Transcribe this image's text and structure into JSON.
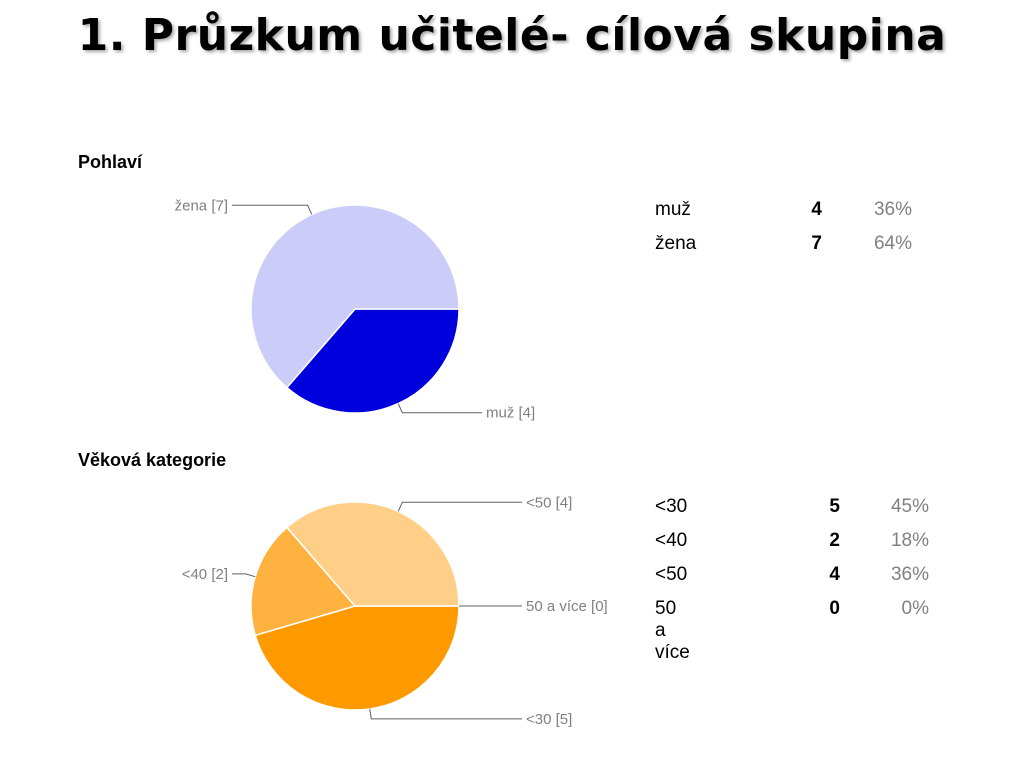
{
  "title": "1. Průzkum učitelé- cílová skupina",
  "chart_data": [
    {
      "type": "pie",
      "title": "Pohlaví",
      "slices": [
        {
          "label": "muž",
          "value": 4,
          "percent": "36%",
          "color": "#0000DD",
          "callout": "muž [4]"
        },
        {
          "label": "žena",
          "value": 7,
          "percent": "64%",
          "color": "#CCCCF9",
          "callout": "žena [7]"
        }
      ],
      "start_angle_deg": 90,
      "direction": "clockwise",
      "label_side": {
        "muž": "right",
        "žena": "left"
      }
    },
    {
      "type": "pie",
      "title": "Věková kategorie",
      "slices": [
        {
          "label": "<30",
          "value": 5,
          "percent": "45%",
          "color": "#FF9900",
          "callout": "<30 [5]"
        },
        {
          "label": "<40",
          "value": 2,
          "percent": "18%",
          "color": "#FFB240",
          "callout": "<40 [2]"
        },
        {
          "label": "<50",
          "value": 4,
          "percent": "36%",
          "color": "#FFCF87",
          "callout": "<50 [4]"
        },
        {
          "label": "50 a více",
          "value": 0,
          "percent": "0%",
          "color": "#FFE0B2",
          "callout": "50 a více [0]"
        }
      ],
      "start_angle_deg": 90,
      "direction": "clockwise",
      "label_side": {
        "<30": "right",
        "<40": "left",
        "<50": "right",
        "50 a více": "right"
      }
    }
  ]
}
